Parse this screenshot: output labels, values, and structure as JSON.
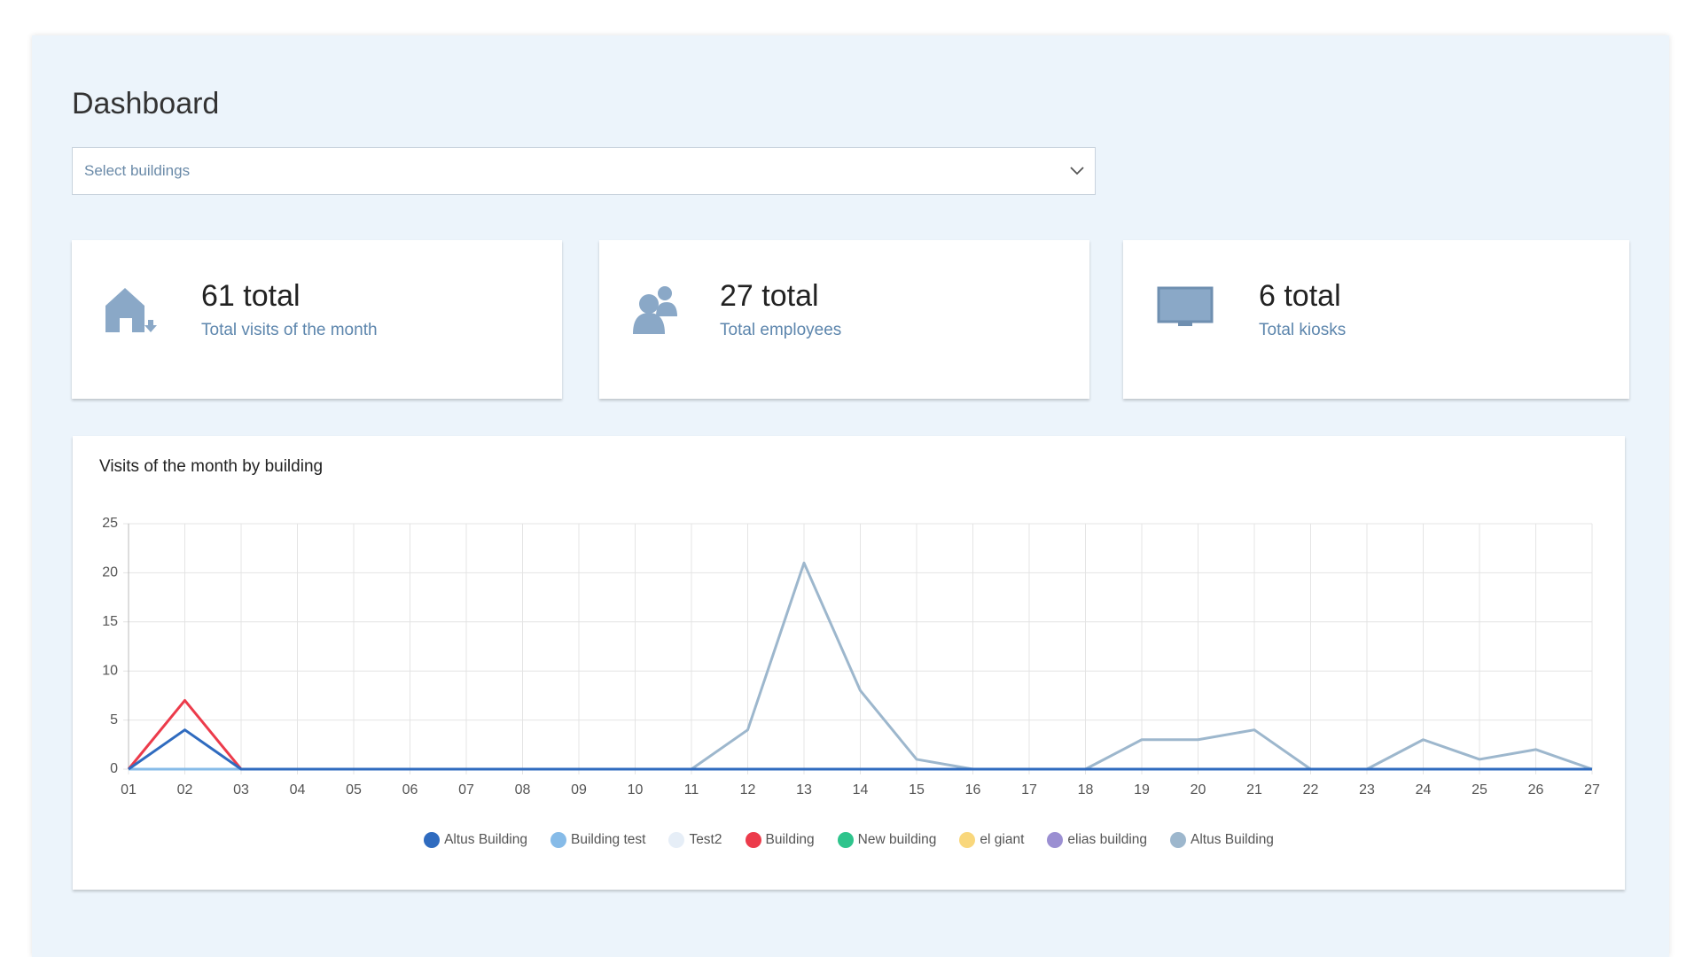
{
  "header": {
    "title": "Dashboard"
  },
  "select": {
    "placeholder": "Select buildings"
  },
  "cards": [
    {
      "value": "61 total",
      "label": "Total visits of the month"
    },
    {
      "value": "27 total",
      "label": "Total employees"
    },
    {
      "value": "6 total",
      "label": "Total kiosks"
    }
  ],
  "chart_data": {
    "type": "line",
    "title": "Visits of the month by building",
    "categories": [
      "01",
      "02",
      "03",
      "04",
      "05",
      "06",
      "07",
      "08",
      "09",
      "10",
      "11",
      "12",
      "13",
      "14",
      "15",
      "16",
      "17",
      "18",
      "19",
      "20",
      "21",
      "22",
      "23",
      "24",
      "25",
      "26",
      "27"
    ],
    "ylim": [
      0,
      25
    ],
    "yticks": [
      0,
      5,
      10,
      15,
      20,
      25
    ],
    "grid": true,
    "series": [
      {
        "name": "Altus Building",
        "color": "#2f6bbf",
        "values": [
          0,
          4,
          0,
          0,
          0,
          0,
          0,
          0,
          0,
          0,
          0,
          0,
          0,
          0,
          0,
          0,
          0,
          0,
          0,
          0,
          0,
          0,
          0,
          0,
          0,
          0,
          0
        ]
      },
      {
        "name": "Building test",
        "color": "#86bbe8",
        "values": [
          0,
          0,
          0,
          0,
          0,
          0,
          0,
          0,
          0,
          0,
          0,
          0,
          0,
          0,
          0,
          0,
          0,
          0,
          0,
          0,
          0,
          0,
          0,
          0,
          0,
          0,
          0
        ]
      },
      {
        "name": "Test2",
        "color": "#e6eef7",
        "values": [
          0,
          0,
          0,
          0,
          0,
          0,
          0,
          0,
          0,
          0,
          0,
          0,
          0,
          0,
          0,
          0,
          0,
          0,
          0,
          0,
          0,
          0,
          0,
          0,
          0,
          0,
          0
        ]
      },
      {
        "name": "Building",
        "color": "#ec3b4b",
        "values": [
          0,
          7,
          0,
          0,
          0,
          0,
          0,
          0,
          0,
          0,
          0,
          0,
          0,
          0,
          0,
          0,
          0,
          0,
          0,
          0,
          0,
          0,
          0,
          0,
          0,
          0,
          0
        ]
      },
      {
        "name": "New building",
        "color": "#2ec48c",
        "values": [
          0,
          0,
          0,
          0,
          0,
          0,
          0,
          0,
          0,
          0,
          0,
          0,
          0,
          0,
          0,
          0,
          0,
          0,
          0,
          0,
          0,
          0,
          0,
          0,
          0,
          0,
          0
        ]
      },
      {
        "name": "el giant",
        "color": "#f9d77c",
        "values": [
          0,
          0,
          0,
          0,
          0,
          0,
          0,
          0,
          0,
          0,
          0,
          0,
          0,
          0,
          0,
          0,
          0,
          0,
          0,
          0,
          0,
          0,
          0,
          0,
          0,
          0,
          0
        ]
      },
      {
        "name": "elias building",
        "color": "#9b8fd2",
        "values": [
          0,
          0,
          0,
          0,
          0,
          0,
          0,
          0,
          0,
          0,
          0,
          0,
          0,
          0,
          0,
          0,
          0,
          0,
          0,
          0,
          0,
          0,
          0,
          0,
          0,
          0,
          0
        ]
      },
      {
        "name": "Altus Building",
        "color": "#9db7cd",
        "values": [
          0,
          0,
          0,
          0,
          0,
          0,
          0,
          0,
          0,
          0,
          0,
          4,
          21,
          8,
          1,
          0,
          0,
          0,
          3,
          3,
          4,
          0,
          0,
          3,
          1,
          2,
          0
        ]
      }
    ]
  }
}
